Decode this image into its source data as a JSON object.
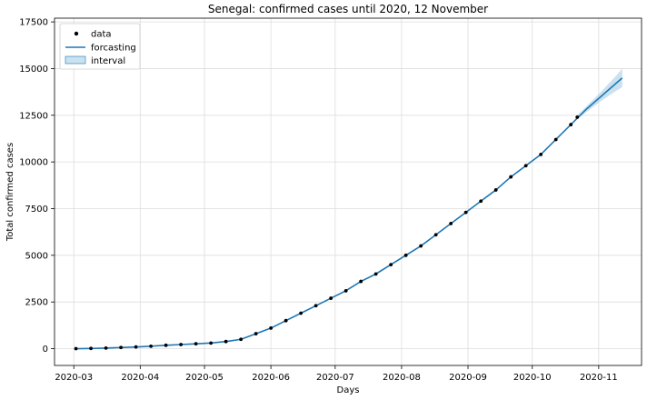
{
  "chart_data": {
    "type": "line",
    "title": "Senegal: confirmed cases until 2020, 12 November",
    "xlabel": "Days",
    "ylabel": "Total confirmed cases",
    "x_ticks": [
      "2020-03",
      "2020-04",
      "2020-05",
      "2020-06",
      "2020-07",
      "2020-08",
      "2020-09",
      "2020-10",
      "2020-11"
    ],
    "y_ticks": [
      0,
      2500,
      5000,
      7500,
      10000,
      12500,
      15000,
      17500
    ],
    "xlim": [
      "2020-02-21",
      "2020-11-21"
    ],
    "ylim": [
      -900,
      17700
    ],
    "grid": true,
    "legend": {
      "position": "top-left",
      "entries": [
        {
          "label": "data",
          "marker": "dot",
          "color": "#000000"
        },
        {
          "label": "forcasting",
          "marker": "line",
          "color": "#1f77b4"
        },
        {
          "label": "interval",
          "marker": "patch",
          "color": "#9ecae1"
        }
      ]
    },
    "colors": {
      "data": "#000000",
      "forecast": "#1f77b4",
      "interval": "#9ecae1"
    },
    "data_end": "2020-10-22",
    "series": [
      {
        "name": "data",
        "points": [
          [
            "2020-03-02",
            0
          ],
          [
            "2020-03-09",
            10
          ],
          [
            "2020-03-16",
            30
          ],
          [
            "2020-03-23",
            60
          ],
          [
            "2020-03-30",
            90
          ],
          [
            "2020-04-06",
            130
          ],
          [
            "2020-04-13",
            180
          ],
          [
            "2020-04-20",
            220
          ],
          [
            "2020-04-27",
            260
          ],
          [
            "2020-05-04",
            300
          ],
          [
            "2020-05-11",
            380
          ],
          [
            "2020-05-18",
            500
          ],
          [
            "2020-05-25",
            800
          ],
          [
            "2020-06-01",
            1100
          ],
          [
            "2020-06-08",
            1500
          ],
          [
            "2020-06-15",
            1900
          ],
          [
            "2020-06-22",
            2300
          ],
          [
            "2020-06-29",
            2700
          ],
          [
            "2020-07-06",
            3100
          ],
          [
            "2020-07-13",
            3600
          ],
          [
            "2020-07-20",
            4000
          ],
          [
            "2020-07-27",
            4500
          ],
          [
            "2020-08-03",
            5000
          ],
          [
            "2020-08-10",
            5500
          ],
          [
            "2020-08-17",
            6100
          ],
          [
            "2020-08-24",
            6700
          ],
          [
            "2020-08-31",
            7300
          ],
          [
            "2020-09-07",
            7900
          ],
          [
            "2020-09-14",
            8500
          ],
          [
            "2020-09-21",
            9200
          ],
          [
            "2020-09-28",
            9800
          ],
          [
            "2020-10-05",
            10400
          ],
          [
            "2020-10-12",
            11200
          ],
          [
            "2020-10-19",
            12000
          ],
          [
            "2020-10-22",
            12400
          ]
        ]
      },
      {
        "name": "forcasting",
        "points": [
          [
            "2020-03-02",
            0
          ],
          [
            "2020-03-09",
            10
          ],
          [
            "2020-03-16",
            30
          ],
          [
            "2020-03-23",
            60
          ],
          [
            "2020-03-30",
            90
          ],
          [
            "2020-04-06",
            130
          ],
          [
            "2020-04-13",
            180
          ],
          [
            "2020-04-20",
            220
          ],
          [
            "2020-04-27",
            260
          ],
          [
            "2020-05-04",
            300
          ],
          [
            "2020-05-11",
            380
          ],
          [
            "2020-05-18",
            500
          ],
          [
            "2020-05-25",
            800
          ],
          [
            "2020-06-01",
            1100
          ],
          [
            "2020-06-08",
            1500
          ],
          [
            "2020-06-15",
            1900
          ],
          [
            "2020-06-22",
            2300
          ],
          [
            "2020-06-29",
            2700
          ],
          [
            "2020-07-06",
            3100
          ],
          [
            "2020-07-13",
            3600
          ],
          [
            "2020-07-20",
            4000
          ],
          [
            "2020-07-27",
            4500
          ],
          [
            "2020-08-03",
            5000
          ],
          [
            "2020-08-10",
            5500
          ],
          [
            "2020-08-17",
            6100
          ],
          [
            "2020-08-24",
            6700
          ],
          [
            "2020-08-31",
            7300
          ],
          [
            "2020-09-07",
            7900
          ],
          [
            "2020-09-14",
            8500
          ],
          [
            "2020-09-21",
            9200
          ],
          [
            "2020-09-28",
            9800
          ],
          [
            "2020-10-05",
            10400
          ],
          [
            "2020-10-12",
            11200
          ],
          [
            "2020-10-19",
            12000
          ],
          [
            "2020-10-26",
            12800
          ],
          [
            "2020-11-02",
            13500
          ],
          [
            "2020-11-09",
            14200
          ],
          [
            "2020-11-12",
            14500
          ]
        ]
      },
      {
        "name": "interval",
        "points": [
          [
            "2020-10-22",
            12300,
            12500
          ],
          [
            "2020-10-26",
            12650,
            12950
          ],
          [
            "2020-11-02",
            13250,
            13750
          ],
          [
            "2020-11-09",
            13800,
            14600
          ],
          [
            "2020-11-12",
            14000,
            15000
          ]
        ]
      }
    ]
  }
}
